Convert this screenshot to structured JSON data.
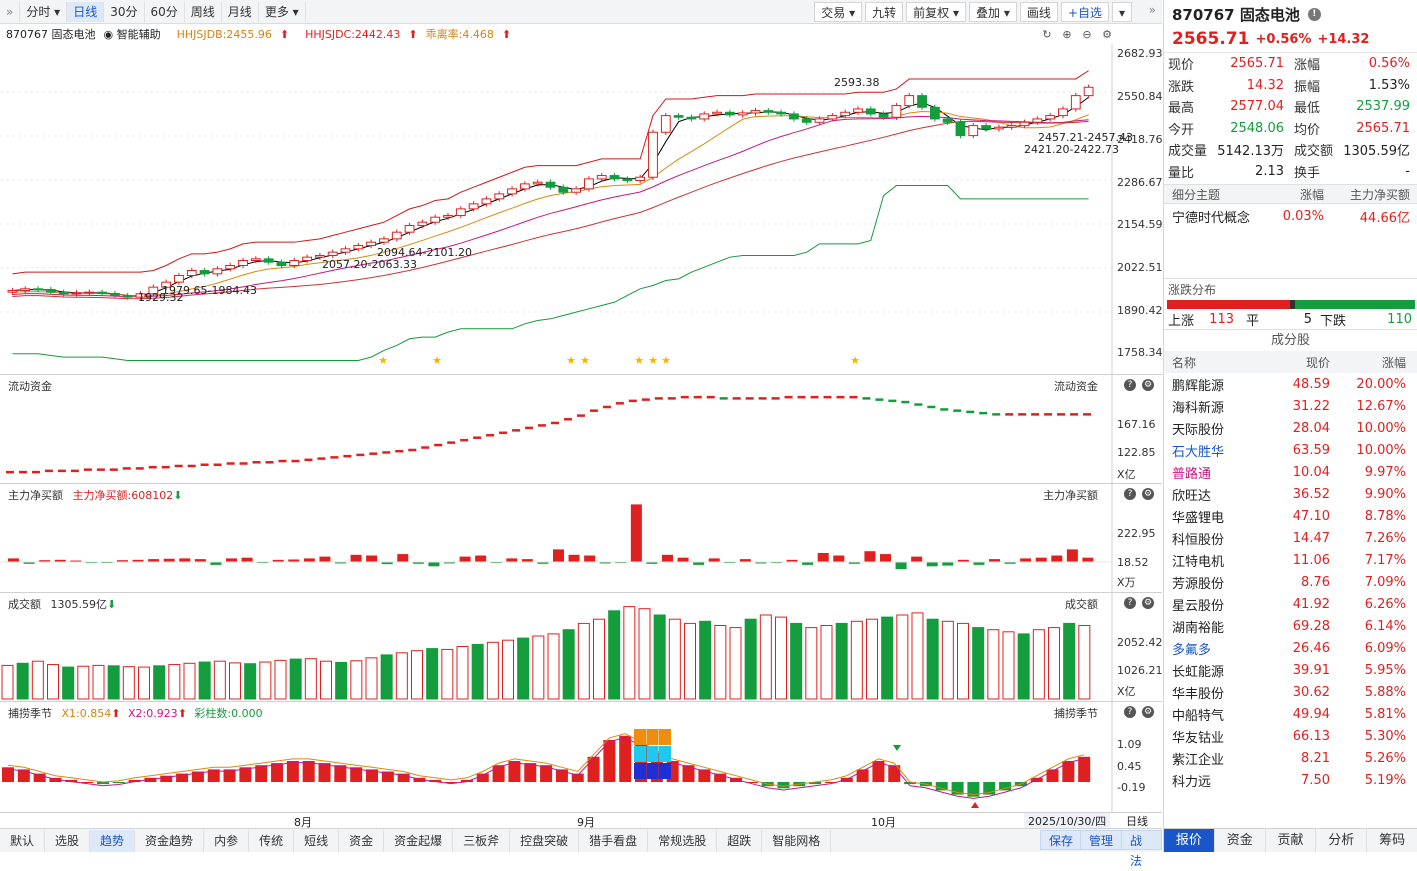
{
  "toolbar": {
    "left": [
      "分时",
      "日线",
      "30分",
      "60分",
      "周线",
      "月线",
      "更多"
    ],
    "active": "日线",
    "right": [
      "交易",
      "九转",
      "前复权",
      "叠加",
      "画线",
      "+自选"
    ]
  },
  "indicator_line": {
    "code_name": "870767  固态电池",
    "smart": "智能辅助",
    "hhjsjdb": "HHJSJDB:2455.96",
    "hhjsjdc": "HHJSJDC:2442.43",
    "deviation": "乖离率:4.468"
  },
  "panels": {
    "flow": "流动资金",
    "main_net": "主力净买额",
    "main_net_value": "主力净买额:608102",
    "volume": "成交额",
    "volume_value": "1305.59亿",
    "season": "捕捞季节",
    "x1": "X1:0.854",
    "x2": "X2:0.923",
    "bars": "彩柱数:0.000"
  },
  "y_axes": {
    "main": [
      "2682.93",
      "2550.84",
      "2418.76",
      "2286.67",
      "2154.59",
      "2022.51",
      "1890.42",
      "1758.34"
    ],
    "flow": [
      "167.16",
      "122.85",
      "X亿"
    ],
    "net": [
      "222.95",
      "18.52",
      "X万"
    ],
    "vol": [
      "2052.42",
      "1026.21",
      "X亿"
    ],
    "season": [
      "1.09",
      "0.45",
      "-0.19"
    ]
  },
  "annotations": {
    "high": "2593.38",
    "low": "1929.32",
    "a1": "1979.65-1984.43",
    "a2": "2057.20-2063.33",
    "a3": "2094.64-2101.20",
    "a4": "2457.21-2457.43",
    "a5": "2421.20-2422.73"
  },
  "x_labels": [
    "8月",
    "9月",
    "10月"
  ],
  "date_label": "2025/10/30/四",
  "bottom": {
    "tabs": [
      "默认",
      "选股",
      "趋势",
      "资金趋势",
      "内参",
      "传统",
      "短线",
      "资金",
      "资金起爆",
      "三板斧",
      "控盘突破",
      "猎手看盘",
      "常规选股",
      "超跌",
      "智能网格"
    ],
    "active": "趋势",
    "right_label": "日线",
    "buttons": [
      "保存",
      "管理",
      "战法"
    ]
  },
  "quote": {
    "title": "870767 固态电池",
    "price": "2565.71",
    "pct": "+0.56%",
    "chg": "+14.32",
    "rows": [
      [
        "现价",
        "2565.71",
        "涨幅",
        "0.56%"
      ],
      [
        "涨跌",
        "14.32",
        "振幅",
        "1.53%"
      ],
      [
        "最高",
        "2577.04",
        "最低",
        "2537.99"
      ],
      [
        "今开",
        "2548.06",
        "均价",
        "2565.71"
      ],
      [
        "成交量",
        "5142.13万",
        "成交额",
        "1305.59亿"
      ],
      [
        "量比",
        "2.13",
        "换手",
        "-"
      ]
    ]
  },
  "theme": {
    "headers": [
      "细分主题",
      "涨幅",
      "主力净买额"
    ],
    "row": [
      "宁德时代概念",
      "0.03%",
      "44.66亿"
    ]
  },
  "distribution": {
    "title": "涨跌分布",
    "up_label": "上涨",
    "up": "113",
    "flat_label": "平",
    "flat": "5",
    "down_label": "下跌",
    "down": "110"
  },
  "components": {
    "title": "成分股",
    "headers": [
      "名称",
      "现价",
      "涨幅"
    ],
    "rows": [
      [
        "鹏辉能源",
        "48.59",
        "20.00%",
        ""
      ],
      [
        "海科新源",
        "31.22",
        "12.67%",
        ""
      ],
      [
        "天际股份",
        "28.04",
        "10.00%",
        ""
      ],
      [
        "石大胜华",
        "63.59",
        "10.00%",
        "blue"
      ],
      [
        "普路通",
        "10.04",
        "9.97%",
        "purple"
      ],
      [
        "欣旺达",
        "36.52",
        "9.90%",
        ""
      ],
      [
        "华盛锂电",
        "47.10",
        "8.78%",
        ""
      ],
      [
        "科恒股份",
        "14.47",
        "7.26%",
        ""
      ],
      [
        "江特电机",
        "11.06",
        "7.17%",
        ""
      ],
      [
        "芳源股份",
        "8.76",
        "7.09%",
        ""
      ],
      [
        "星云股份",
        "41.92",
        "6.26%",
        ""
      ],
      [
        "湖南裕能",
        "69.28",
        "6.14%",
        ""
      ],
      [
        "多氟多",
        "26.46",
        "6.09%",
        "blue"
      ],
      [
        "长虹能源",
        "39.91",
        "5.95%",
        ""
      ],
      [
        "华丰股份",
        "30.62",
        "5.88%",
        ""
      ],
      [
        "中船特气",
        "49.94",
        "5.81%",
        ""
      ],
      [
        "华友钴业",
        "66.13",
        "5.30%",
        ""
      ],
      [
        "紫江企业",
        "8.21",
        "5.26%",
        ""
      ],
      [
        "科力远",
        "7.50",
        "5.19%",
        ""
      ]
    ]
  },
  "right_tabs": [
    "报价",
    "资金",
    "贡献",
    "分析",
    "筹码"
  ],
  "colors": {
    "up": "#e0201f",
    "down": "#139d3c",
    "accent": "#1a56c8"
  },
  "chart_data": {
    "type": "candlestick",
    "ylim": [
      1758.34,
      2682.93
    ],
    "closes": [
      1955,
      1960,
      1958,
      1950,
      1945,
      1948,
      1950,
      1946,
      1940,
      1935,
      1945,
      1965,
      1980,
      2000,
      2015,
      2005,
      2020,
      2030,
      2045,
      2050,
      2040,
      2030,
      2045,
      2055,
      2060,
      2070,
      2080,
      2090,
      2100,
      2110,
      2130,
      2150,
      2160,
      2175,
      2180,
      2200,
      2215,
      2230,
      2245,
      2260,
      2275,
      2280,
      2265,
      2250,
      2260,
      2290,
      2300,
      2290,
      2285,
      2295,
      2430,
      2480,
      2475,
      2470,
      2485,
      2490,
      2482,
      2488,
      2495,
      2490,
      2485,
      2470,
      2460,
      2470,
      2480,
      2490,
      2500,
      2485,
      2475,
      2510,
      2540,
      2505,
      2470,
      2460,
      2420,
      2450,
      2440,
      2445,
      2450,
      2460,
      2470,
      2480,
      2500,
      2540,
      2565
    ],
    "flow": [
      120,
      120,
      120,
      121,
      121,
      121,
      122,
      122,
      122,
      123,
      123,
      124,
      124,
      125,
      125,
      126,
      126,
      127,
      127,
      128,
      128,
      129,
      129,
      130,
      131,
      132,
      133,
      134,
      135,
      136,
      137,
      138,
      140,
      142,
      144,
      146,
      148,
      150,
      152,
      154,
      156,
      158,
      160,
      163,
      166,
      170,
      173,
      176,
      178,
      179,
      180,
      180,
      181,
      181,
      181,
      180,
      180,
      180,
      180,
      180,
      181,
      181,
      181,
      181,
      181,
      181,
      180,
      179,
      178,
      177,
      175,
      173,
      171,
      170,
      169,
      168,
      167,
      167,
      167,
      167,
      167,
      167,
      167,
      167
    ],
    "net": [
      10,
      -5,
      5,
      6,
      4,
      -3,
      -2,
      5,
      6,
      8,
      9,
      10,
      8,
      -8,
      10,
      12,
      -3,
      6,
      7,
      10,
      15,
      -4,
      20,
      18,
      -6,
      22,
      -5,
      -12,
      -4,
      15,
      18,
      -3,
      10,
      8,
      -5,
      35,
      20,
      18,
      -4,
      -3,
      160,
      -5,
      20,
      12,
      -8,
      10,
      -3,
      8,
      -4,
      -2,
      6,
      -8,
      25,
      18,
      -5,
      30,
      22,
      -20,
      15,
      -12,
      -10,
      6,
      -8,
      8,
      -5,
      10,
      12,
      18,
      35,
      12
    ],
    "vol": [
      800,
      850,
      900,
      820,
      760,
      780,
      800,
      790,
      770,
      760,
      790,
      820,
      850,
      880,
      900,
      860,
      840,
      880,
      920,
      950,
      960,
      900,
      870,
      910,
      980,
      1050,
      1100,
      1150,
      1200,
      1180,
      1250,
      1300,
      1350,
      1400,
      1450,
      1500,
      1550,
      1650,
      1800,
      1900,
      2100,
      2200,
      2150,
      2000,
      1900,
      1800,
      1850,
      1750,
      1700,
      1900,
      2000,
      1950,
      1800,
      1700,
      1750,
      1800,
      1850,
      1900,
      1950,
      2000,
      2050,
      1900,
      1850,
      1800,
      1700,
      1650,
      1600,
      1550,
      1650,
      1700,
      1800,
      1750
    ],
    "season": [
      0.35,
      0.3,
      0.2,
      0.1,
      0.05,
      0.0,
      -0.05,
      -0.02,
      0.05,
      0.1,
      0.15,
      0.2,
      0.25,
      0.3,
      0.3,
      0.35,
      0.4,
      0.45,
      0.5,
      0.5,
      0.45,
      0.4,
      0.35,
      0.3,
      0.25,
      0.2,
      0.1,
      0.05,
      0.0,
      0.05,
      0.2,
      0.4,
      0.5,
      0.45,
      0.4,
      0.3,
      0.2,
      0.6,
      1.0,
      1.1,
      0.9,
      0.7,
      0.5,
      0.4,
      0.3,
      0.2,
      0.1,
      0.0,
      -0.1,
      -0.15,
      -0.1,
      -0.05,
      0.0,
      0.1,
      0.3,
      0.5,
      0.4,
      -0.05,
      -0.1,
      -0.2,
      -0.3,
      -0.35,
      -0.3,
      -0.2,
      -0.1,
      0.1,
      0.3,
      0.5,
      0.6
    ]
  }
}
